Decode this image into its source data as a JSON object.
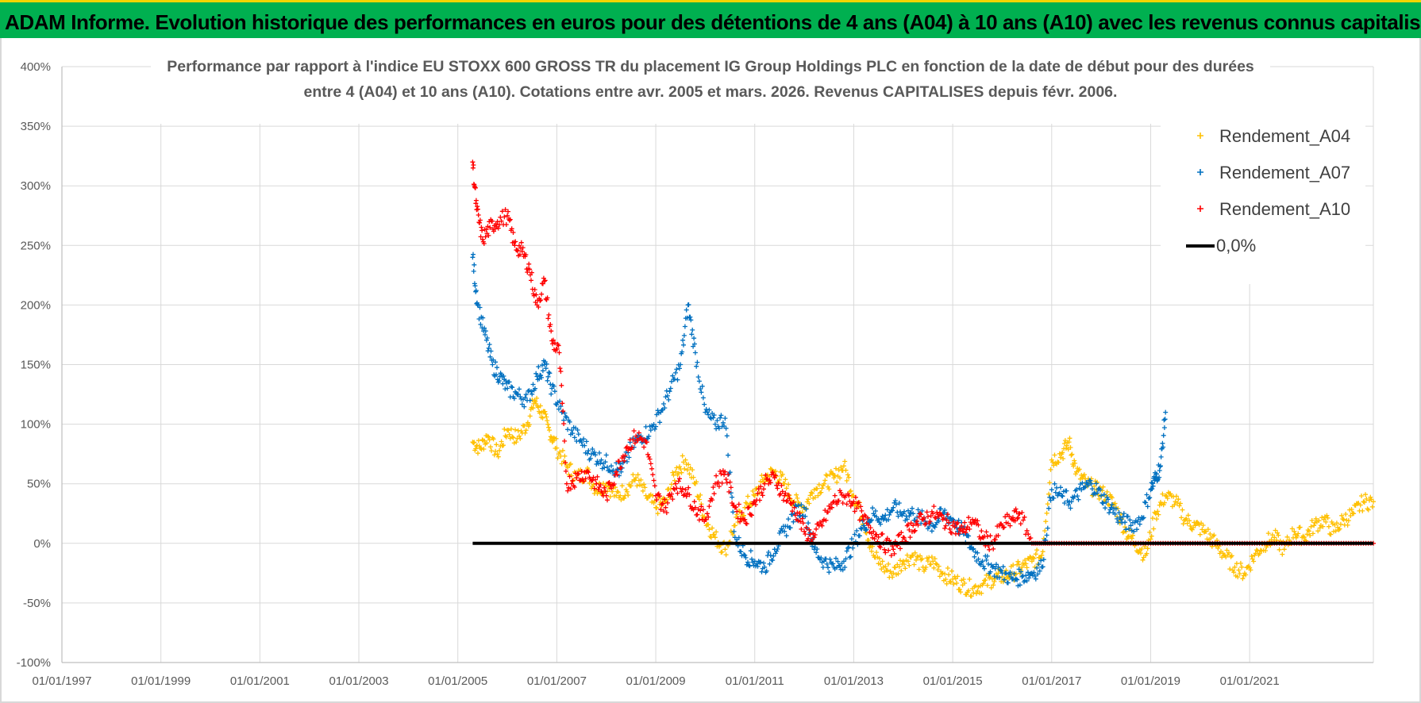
{
  "header": {
    "title": "ADAM Informe. Evolution historique des performances en euros pour des détentions de 4 ans (A04) à 10 ans (A10) avec les revenus connus capitalisés"
  },
  "chart_data": {
    "type": "scatter",
    "title_line1": "Performance par rapport à l'indice EU STOXX 600 GROSS TR  du placement IG Group Holdings PLC en fonction de la date de début pour des durées",
    "title_line2": "entre 4 (A04) et 10 ans (A10).  Cotations entre avr. 2005 et mars. 2026.  Revenus CAPITALISES depuis févr. 2006.",
    "xlabel": "",
    "ylabel": "",
    "x_tick_labels": [
      "01/01/1997",
      "01/01/1999",
      "01/01/2001",
      "01/01/2003",
      "01/01/2005",
      "01/01/2007",
      "01/01/2009",
      "01/01/2011",
      "01/01/2013",
      "01/01/2015",
      "01/01/2017",
      "01/01/2019",
      "01/01/2021"
    ],
    "x_tick_years": [
      1997,
      1999,
      2001,
      2003,
      2005,
      2007,
      2009,
      2011,
      2013,
      2015,
      2017,
      2019,
      2021
    ],
    "xlim": [
      1997.0,
      2023.5
    ],
    "y_tick_labels": [
      "400%",
      "350%",
      "300%",
      "250%",
      "200%",
      "150%",
      "100%",
      "50%",
      "0%",
      "-50%",
      "-100%"
    ],
    "y_tick_values": [
      400,
      350,
      300,
      250,
      200,
      150,
      100,
      50,
      0,
      -50,
      -100
    ],
    "ylim": [
      -100,
      400
    ],
    "grid": true,
    "legend_position": "top-right",
    "series": [
      {
        "name": "Rendement_A04",
        "color": "#ffc000",
        "marker": "+",
        "x": [
          2005.3,
          2005.45,
          2005.6,
          2005.8,
          2006.0,
          2006.2,
          2006.4,
          2006.55,
          2006.7,
          2006.85,
          2007.0,
          2007.2,
          2007.4,
          2007.6,
          2007.8,
          2008.0,
          2008.2,
          2008.4,
          2008.6,
          2008.8,
          2009.0,
          2009.2,
          2009.4,
          2009.6,
          2009.8,
          2010.0,
          2010.2,
          2010.4,
          2010.6,
          2010.8,
          2011.0,
          2011.2,
          2011.4,
          2011.6,
          2011.8,
          2012.0,
          2012.2,
          2012.4,
          2012.6,
          2012.8,
          2013.0,
          2013.2,
          2013.4,
          2013.6,
          2013.8,
          2014.0,
          2014.2,
          2014.4,
          2014.6,
          2014.8,
          2015.0,
          2015.2,
          2015.4,
          2015.6,
          2015.8,
          2016.0,
          2016.2,
          2016.4,
          2016.6,
          2016.8,
          2017.0,
          2017.2,
          2017.35,
          2017.5,
          2017.7,
          2017.9,
          2018.1,
          2018.3,
          2018.5,
          2018.7,
          2018.9,
          2019.1,
          2019.3,
          2019.5,
          2019.7,
          2019.9,
          2020.1,
          2020.3,
          2020.5,
          2020.7,
          2020.9,
          2021.1,
          2021.3,
          2021.5,
          2021.7,
          2021.9,
          2022.1,
          2022.3,
          2022.5,
          2022.7,
          2022.9,
          2023.1,
          2023.3,
          2023.5
        ],
        "y": [
          85,
          80,
          90,
          75,
          95,
          88,
          100,
          120,
          110,
          95,
          80,
          65,
          55,
          60,
          45,
          50,
          40,
          45,
          55,
          40,
          30,
          35,
          60,
          70,
          50,
          20,
          5,
          -5,
          15,
          30,
          40,
          55,
          60,
          50,
          35,
          30,
          45,
          50,
          55,
          65,
          40,
          20,
          -10,
          -20,
          -25,
          -15,
          -10,
          -20,
          -15,
          -25,
          -30,
          -35,
          -38,
          -35,
          -30,
          -28,
          -25,
          -20,
          -15,
          -10,
          70,
          75,
          85,
          60,
          50,
          45,
          40,
          30,
          10,
          0,
          -10,
          25,
          40,
          35,
          20,
          15,
          10,
          0,
          -10,
          -20,
          -25,
          -10,
          0,
          5,
          -5,
          10,
          5,
          15,
          20,
          10,
          20,
          25,
          35,
          35
        ]
      },
      {
        "name": "Rendement_A07",
        "color": "#0070c0",
        "marker": "+",
        "x": [
          2005.3,
          2005.4,
          2005.55,
          2005.7,
          2005.85,
          2006.0,
          2006.2,
          2006.4,
          2006.6,
          2006.75,
          2006.9,
          2007.1,
          2007.3,
          2007.5,
          2007.7,
          2007.9,
          2008.1,
          2008.3,
          2008.5,
          2008.7,
          2008.9,
          2009.1,
          2009.3,
          2009.5,
          2009.65,
          2009.8,
          2010.0,
          2010.2,
          2010.4,
          2010.6,
          2010.8,
          2011.0,
          2011.2,
          2011.4,
          2011.6,
          2011.8,
          2012.0,
          2012.2,
          2012.4,
          2012.6,
          2012.8,
          2013.0,
          2013.2,
          2013.4,
          2013.6,
          2013.8,
          2014.0,
          2014.2,
          2014.4,
          2014.6,
          2014.8,
          2015.0,
          2015.2,
          2015.4,
          2015.6,
          2015.8,
          2016.0,
          2016.2,
          2016.4,
          2016.6,
          2016.8,
          2017.0,
          2017.2,
          2017.4,
          2017.6,
          2017.8,
          2018.0,
          2018.2,
          2018.4,
          2018.6,
          2018.8,
          2019.0,
          2019.1,
          2019.2,
          2019.3
        ],
        "y": [
          240,
          200,
          175,
          150,
          140,
          130,
          125,
          120,
          140,
          150,
          130,
          110,
          95,
          85,
          75,
          70,
          65,
          60,
          80,
          90,
          95,
          110,
          130,
          150,
          200,
          160,
          110,
          100,
          105,
          5,
          -10,
          -15,
          -20,
          -5,
          10,
          25,
          30,
          -5,
          -15,
          -20,
          -15,
          0,
          15,
          25,
          20,
          30,
          25,
          25,
          20,
          15,
          25,
          20,
          10,
          -5,
          -15,
          -20,
          -25,
          -30,
          -28,
          -25,
          -20,
          45,
          40,
          35,
          45,
          50,
          40,
          30,
          20,
          15,
          20,
          45,
          55,
          65,
          110
        ]
      },
      {
        "name": "Rendement_A10",
        "color": "#ff0000",
        "marker": "+",
        "x": [
          2005.3,
          2005.38,
          2005.5,
          2005.65,
          2005.8,
          2006.0,
          2006.15,
          2006.3,
          2006.45,
          2006.6,
          2006.75,
          2006.9,
          2007.05,
          2007.2,
          2007.4,
          2007.6,
          2007.8,
          2008.0,
          2008.2,
          2008.4,
          2008.6,
          2008.8,
          2009.0,
          2009.2,
          2009.4,
          2009.6,
          2009.8,
          2010.0,
          2010.2,
          2010.4,
          2010.6,
          2010.8,
          2011.0,
          2011.2,
          2011.4,
          2011.6,
          2011.8,
          2012.0,
          2012.2,
          2012.4,
          2012.6,
          2012.8,
          2013.0,
          2013.2,
          2013.4,
          2013.6,
          2013.8,
          2014.0,
          2014.2,
          2014.4,
          2014.6,
          2014.8,
          2015.0,
          2015.2,
          2015.4,
          2015.6,
          2015.8,
          2016.0,
          2016.2,
          2016.35,
          2016.6,
          2017.0,
          2017.5,
          2018.0,
          2018.5,
          2019.0,
          2019.5,
          2020.0,
          2020.5,
          2021.0,
          2021.5,
          2022.0,
          2022.5,
          2023.0,
          2023.5
        ],
        "y": [
          320,
          280,
          255,
          265,
          270,
          275,
          250,
          245,
          230,
          200,
          220,
          170,
          160,
          50,
          55,
          60,
          50,
          40,
          60,
          80,
          90,
          85,
          40,
          30,
          50,
          45,
          30,
          20,
          50,
          60,
          30,
          20,
          35,
          50,
          55,
          40,
          30,
          10,
          5,
          20,
          35,
          40,
          35,
          20,
          10,
          0,
          -5,
          5,
          15,
          20,
          25,
          20,
          15,
          10,
          20,
          5,
          0,
          15,
          20,
          25,
          0,
          0,
          0,
          0,
          0,
          0,
          0,
          0,
          0,
          0,
          0,
          0,
          0,
          0,
          0
        ]
      },
      {
        "name": "0,0%",
        "color": "#000000",
        "marker": "line",
        "x": [
          2005.3,
          2023.5
        ],
        "y": [
          0,
          0
        ]
      }
    ]
  }
}
